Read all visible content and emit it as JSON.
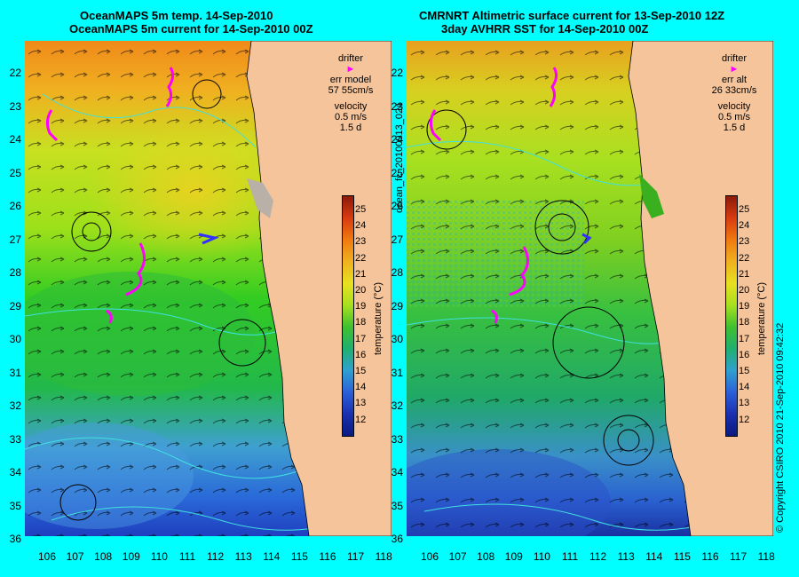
{
  "left_panel": {
    "title_line1": "OceanMAPS 5m temp. 14-Sep-2010",
    "title_line2": "OceanMAPS 5m current for 14-Sep-2010 00Z",
    "legend": {
      "drifter": "drifter",
      "err_label": "err model",
      "err_value": "57 55cm/s",
      "velocity": "velocity",
      "speed": "0.5 m/s",
      "duration": "1.5 d"
    }
  },
  "right_panel": {
    "title_line1": "CMRNRT Altimetric surface current for 13-Sep-2010 12Z",
    "title_line2": "3day AVHRR SST for 14-Sep-2010 00Z",
    "legend": {
      "drifter": "drifter",
      "err_label": "err alt",
      "err_value": "26 33cm/s",
      "velocity": "velocity",
      "speed": "0.5 m/s",
      "duration": "1.5 d"
    }
  },
  "side_label_center": "ocean_fc_20100913_024",
  "side_label_right": "© Copyright CSIRO 2010   21-Sep-2010 09:42:32",
  "latitude_labels": [
    "22",
    "23",
    "24",
    "25",
    "26",
    "27",
    "28",
    "29",
    "30",
    "31",
    "32",
    "33",
    "34",
    "35",
    "36"
  ],
  "longitude_labels": [
    "106",
    "107",
    "108",
    "109",
    "110",
    "111",
    "112",
    "113",
    "114",
    "115",
    "116",
    "117",
    "118"
  ],
  "colorbar": {
    "title": "temperature (°C)",
    "ticks": [
      "25",
      "24",
      "23",
      "22",
      "21",
      "20",
      "19",
      "18",
      "17",
      "16",
      "15",
      "14",
      "13",
      "12"
    ]
  },
  "colors": {
    "background": "#00ffff",
    "land": "#f5c49a",
    "drifter": "#ff00ff"
  }
}
